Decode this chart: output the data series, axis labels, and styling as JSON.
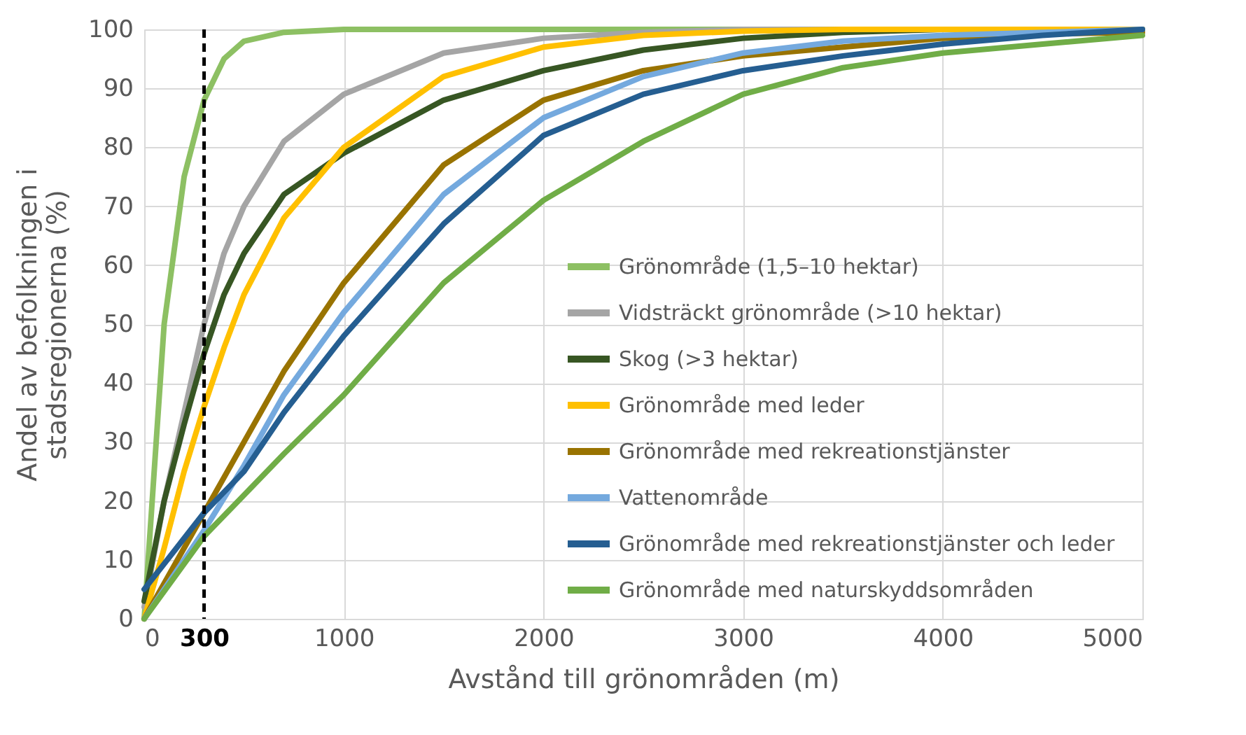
{
  "chart_data": {
    "type": "line",
    "xlabel": "Avstånd till grönområden (m)",
    "ylabel": "Andel av befolkningen i\nstadsregionerna (%)",
    "xlim": [
      0,
      5000
    ],
    "xticks": [
      0,
      300,
      1000,
      2000,
      3000,
      4000,
      5000
    ],
    "ylim": [
      0,
      100
    ],
    "yticks": [
      0,
      10,
      20,
      30,
      40,
      50,
      60,
      70,
      80,
      90,
      100
    ],
    "grid": true,
    "legend": "bottom right",
    "line_style": "solid",
    "marker": "none",
    "ref_lines": [
      {
        "axis": "x",
        "value": 300,
        "color": "#000000",
        "line_style": "dashed"
      }
    ],
    "series": [
      {
        "name": "Grönområde (1,5–10 hektar)",
        "color": "#8dc063",
        "x": [
          0,
          100,
          200,
          300,
          400,
          500,
          700,
          1000,
          2000,
          3000,
          4000,
          5000
        ],
        "values": [
          0,
          50,
          75,
          88,
          95,
          98,
          99.5,
          100,
          100,
          100,
          100,
          100
        ]
      },
      {
        "name": "Vidsträckt grönområde (>10 hektar)",
        "color": "#a5a5a5",
        "x": [
          0,
          100,
          200,
          300,
          400,
          500,
          700,
          1000,
          1500,
          2000,
          2500,
          3000,
          4000,
          5000
        ],
        "values": [
          2,
          20,
          35,
          50,
          62,
          70,
          81,
          89,
          96,
          98.5,
          99.5,
          100,
          100,
          100
        ]
      },
      {
        "name": "Skog (>3 hektar)",
        "color": "#375623",
        "x": [
          0,
          100,
          200,
          300,
          400,
          500,
          700,
          1000,
          1500,
          2000,
          2500,
          3000,
          3500,
          4000,
          5000
        ],
        "values": [
          3,
          20,
          33,
          45,
          55,
          62,
          72,
          79,
          88,
          93,
          96.5,
          98.5,
          99.5,
          100,
          100
        ]
      },
      {
        "name": "Grönområde med leder",
        "color": "#ffc000",
        "x": [
          0,
          100,
          200,
          300,
          400,
          500,
          700,
          1000,
          1500,
          2000,
          2500,
          3000,
          3500,
          5000
        ],
        "values": [
          0,
          12,
          25,
          36,
          46,
          55,
          68,
          80,
          92,
          97,
          99,
          99.7,
          100,
          100
        ]
      },
      {
        "name": "Grönområde med rekreationstjänster",
        "color": "#997300",
        "x": [
          0,
          300,
          500,
          700,
          1000,
          1500,
          2000,
          2500,
          3000,
          3500,
          4000,
          4500,
          5000
        ],
        "values": [
          0,
          18,
          30,
          42,
          57,
          77,
          88,
          93,
          95.5,
          97,
          98.5,
          99.2,
          99.5
        ]
      },
      {
        "name": "Vattenområde",
        "color": "#74a9de",
        "x": [
          0,
          300,
          500,
          700,
          1000,
          1500,
          2000,
          2500,
          3000,
          3500,
          4000,
          5000
        ],
        "values": [
          0,
          15,
          26,
          38,
          52,
          72,
          85,
          92,
          96,
          98,
          99,
          100
        ]
      },
      {
        "name": "Grönområde med rekreationstjänster och leder",
        "color": "#255e91",
        "x": [
          0,
          300,
          500,
          700,
          1000,
          1500,
          2000,
          2500,
          3000,
          3500,
          4000,
          4500,
          5000
        ],
        "values": [
          5,
          18,
          25,
          35,
          48,
          67,
          82,
          89,
          93,
          95.5,
          97.5,
          99,
          100
        ]
      },
      {
        "name": "Grönområde med naturskyddsområden",
        "color": "#70ad47",
        "x": [
          0,
          300,
          500,
          700,
          1000,
          1500,
          2000,
          2500,
          3000,
          3500,
          4000,
          4500,
          5000
        ],
        "values": [
          0,
          14,
          21,
          28,
          38,
          57,
          71,
          81,
          89,
          93.5,
          96,
          97.5,
          99
        ]
      }
    ]
  }
}
